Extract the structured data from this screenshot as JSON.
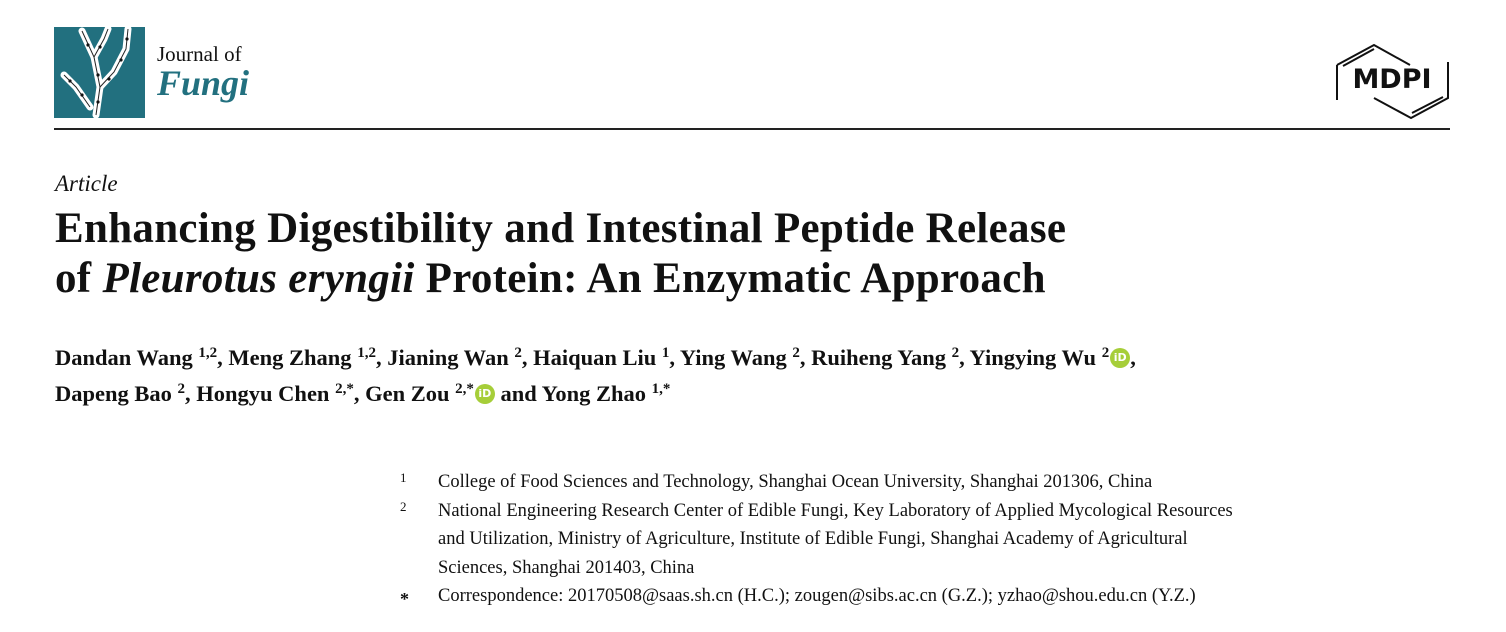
{
  "journal": {
    "line1": "Journal of",
    "line2": "Fungi",
    "brand_color": "#22707f"
  },
  "publisher": {
    "logo_text": "MDPI"
  },
  "article_type": "Article",
  "title": {
    "line1": "Enhancing Digestibility and Intestinal Peptide Release",
    "line2_prefix": "of ",
    "line2_italic": "Pleurotus eryngii",
    "line2_suffix": " Protein: An Enzymatic Approach"
  },
  "authors": [
    {
      "name": "Dandan Wang",
      "sup": "1,2",
      "orcid": false,
      "sep": ", "
    },
    {
      "name": "Meng Zhang",
      "sup": "1,2",
      "orcid": false,
      "sep": ", "
    },
    {
      "name": "Jianing Wan",
      "sup": "2",
      "orcid": false,
      "sep": ", "
    },
    {
      "name": "Haiquan Liu",
      "sup": "1",
      "orcid": false,
      "sep": ", "
    },
    {
      "name": "Ying Wang",
      "sup": "2",
      "orcid": false,
      "sep": ", "
    },
    {
      "name": "Ruiheng Yang",
      "sup": "2",
      "orcid": false,
      "sep": ", "
    },
    {
      "name": "Yingying Wu",
      "sup": "2",
      "orcid": true,
      "sep": ","
    },
    {
      "name": "Dapeng Bao",
      "sup": "2",
      "orcid": false,
      "sep": ", "
    },
    {
      "name": "Hongyu Chen",
      "sup": "2,*",
      "orcid": false,
      "sep": ", "
    },
    {
      "name": "Gen Zou",
      "sup": "2,*",
      "orcid": true,
      "sep": " and "
    },
    {
      "name": "Yong Zhao",
      "sup": "1,*",
      "orcid": false,
      "sep": ""
    }
  ],
  "orcid_color": "#a6ce39",
  "orcid_label": "iD",
  "affiliations": [
    {
      "num": "1",
      "lines": [
        "College of Food Sciences and Technology, Shanghai Ocean University, Shanghai 201306, China"
      ]
    },
    {
      "num": "2",
      "lines": [
        "National Engineering Research Center of Edible Fungi, Key Laboratory of Applied Mycological Resources",
        "and Utilization, Ministry of Agriculture, Institute of Edible Fungi, Shanghai Academy of Agricultural",
        "Sciences, Shanghai 201403, China"
      ]
    },
    {
      "num": "*",
      "lines": [
        "Correspondence: 20170508@saas.sh.cn (H.C.); zougen@sibs.ac.cn (G.Z.); yzhao@shou.edu.cn (Y.Z.)"
      ]
    }
  ]
}
